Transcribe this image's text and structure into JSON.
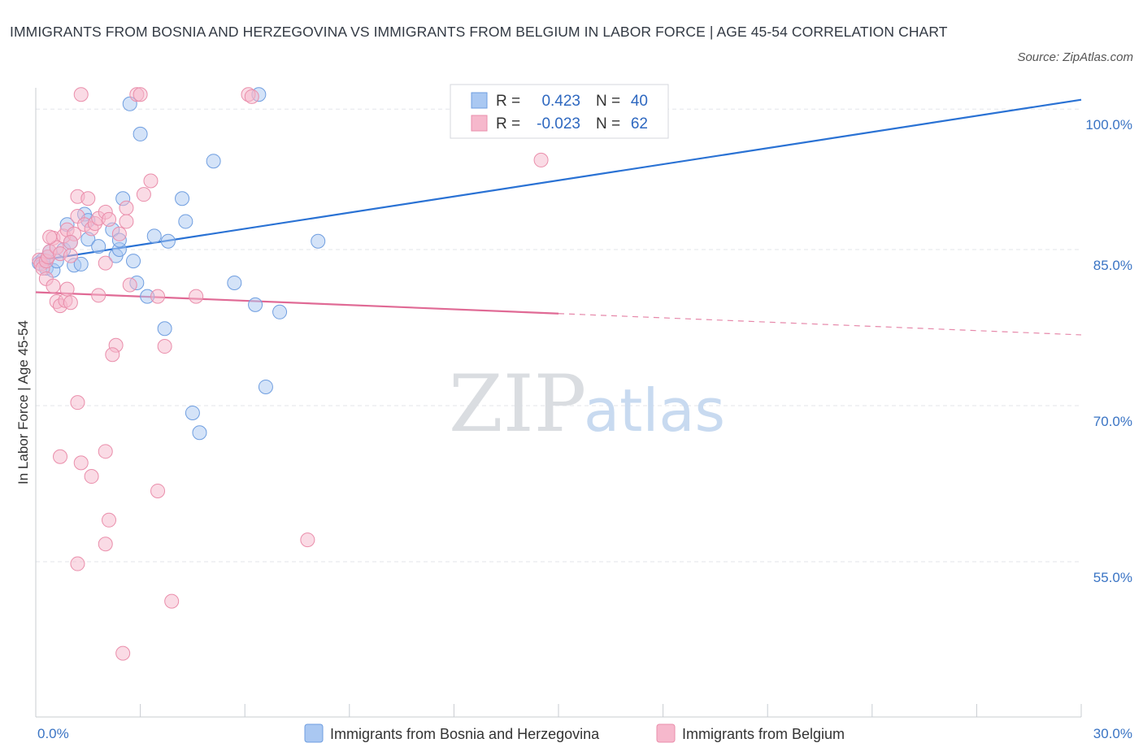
{
  "header": {
    "title": "IMMIGRANTS FROM BOSNIA AND HERZEGOVINA VS IMMIGRANTS FROM BELGIUM IN LABOR FORCE | AGE 45-54 CORRELATION CHART",
    "source": "Source: ZipAtlas.com"
  },
  "watermark": {
    "zip": "ZIP",
    "atlas": "atlas"
  },
  "legend_box": {
    "r_label": "R =",
    "n_label": "N =",
    "series": [
      {
        "r": "0.423",
        "n": "40"
      },
      {
        "r": "-0.023",
        "n": "62"
      }
    ]
  },
  "chart_data": {
    "type": "scatter",
    "title": "IMMIGRANTS FROM BOSNIA AND HERZEGOVINA VS IMMIGRANTS FROM BELGIUM IN LABOR FORCE | AGE 45-54 CORRELATION CHART",
    "xlabel": "",
    "ylabel": "In Labor Force | Age 45-54",
    "xlim": [
      0,
      30
    ],
    "ylim": [
      40,
      100
    ],
    "x_tick_labels": [
      "0.0%",
      "30.0%"
    ],
    "y_ticks": [
      {
        "value": 98.5,
        "label": "100.0%"
      },
      {
        "value": 85,
        "label": "85.0%"
      },
      {
        "value": 70,
        "label": "70.0%"
      },
      {
        "value": 55,
        "label": "55.0%"
      }
    ],
    "colors": {
      "blue_fill": "#aac8f2",
      "blue_stroke": "#6f9ee0",
      "blue_line": "#2a72d4",
      "pink_fill": "#f6b8cc",
      "pink_stroke": "#ea8eab",
      "pink_line": "#e06a95"
    },
    "series": [
      {
        "name": "Immigrants from Bosnia and Herzegovina",
        "color": "#2a72d4",
        "R": 0.423,
        "N": 40,
        "trend": {
          "x0": 0,
          "y0": 83.9,
          "x1": 30,
          "y1": 99.4,
          "solid_until": 30
        },
        "points": [
          [
            0.1,
            83.7
          ],
          [
            0.2,
            84.0
          ],
          [
            0.3,
            83.2
          ],
          [
            0.35,
            84.3
          ],
          [
            0.4,
            84.8
          ],
          [
            0.5,
            83.0
          ],
          [
            0.6,
            83.9
          ],
          [
            0.8,
            85.0
          ],
          [
            1.0,
            85.7
          ],
          [
            1.1,
            83.5
          ],
          [
            1.3,
            83.6
          ],
          [
            1.5,
            86.0
          ],
          [
            0.9,
            87.4
          ],
          [
            1.4,
            88.4
          ],
          [
            1.5,
            87.8
          ],
          [
            2.2,
            86.9
          ],
          [
            2.3,
            84.4
          ],
          [
            2.4,
            85.0
          ],
          [
            1.8,
            85.3
          ],
          [
            2.4,
            85.9
          ],
          [
            2.8,
            83.9
          ],
          [
            2.9,
            81.8
          ],
          [
            3.2,
            80.5
          ],
          [
            3.4,
            86.3
          ],
          [
            3.8,
            85.8
          ],
          [
            4.3,
            87.7
          ],
          [
            4.2,
            89.9
          ],
          [
            2.5,
            89.9
          ],
          [
            2.7,
            99.0
          ],
          [
            3.0,
            96.1
          ],
          [
            5.1,
            93.5
          ],
          [
            5.7,
            81.8
          ],
          [
            6.4,
            99.9
          ],
          [
            6.3,
            79.7
          ],
          [
            7.0,
            79.0
          ],
          [
            6.6,
            71.8
          ],
          [
            3.7,
            77.4
          ],
          [
            4.5,
            69.3
          ],
          [
            4.7,
            67.4
          ],
          [
            8.1,
            85.8
          ]
        ]
      },
      {
        "name": "Immigrants from Belgium",
        "color": "#e06a95",
        "R": -0.023,
        "N": 62,
        "trend": {
          "x0": 0,
          "y0": 80.9,
          "x1": 30,
          "y1": 76.8,
          "solid_until": 15
        },
        "points": [
          [
            0.1,
            84.0
          ],
          [
            0.15,
            83.6
          ],
          [
            0.2,
            83.2
          ],
          [
            0.3,
            83.9
          ],
          [
            0.3,
            82.2
          ],
          [
            0.35,
            84.3
          ],
          [
            0.4,
            84.8
          ],
          [
            0.5,
            86.1
          ],
          [
            0.6,
            85.2
          ],
          [
            0.7,
            84.6
          ],
          [
            0.8,
            86.3
          ],
          [
            0.5,
            81.5
          ],
          [
            0.6,
            80.0
          ],
          [
            0.7,
            79.6
          ],
          [
            0.85,
            80.1
          ],
          [
            0.9,
            81.2
          ],
          [
            1.0,
            79.9
          ],
          [
            0.9,
            86.9
          ],
          [
            1.1,
            86.5
          ],
          [
            1.0,
            85.7
          ],
          [
            1.2,
            88.2
          ],
          [
            1.4,
            87.4
          ],
          [
            1.6,
            87.0
          ],
          [
            1.7,
            87.5
          ],
          [
            1.8,
            88.0
          ],
          [
            1.2,
            90.1
          ],
          [
            1.5,
            89.9
          ],
          [
            2.0,
            88.6
          ],
          [
            2.1,
            87.9
          ],
          [
            2.4,
            86.5
          ],
          [
            2.6,
            89.0
          ],
          [
            2.6,
            87.7
          ],
          [
            3.1,
            90.3
          ],
          [
            3.3,
            91.6
          ],
          [
            1.8,
            80.6
          ],
          [
            2.0,
            83.7
          ],
          [
            2.7,
            81.6
          ],
          [
            3.5,
            80.5
          ],
          [
            3.7,
            75.7
          ],
          [
            4.6,
            80.5
          ],
          [
            2.3,
            75.8
          ],
          [
            2.2,
            74.9
          ],
          [
            1.2,
            70.3
          ],
          [
            0.7,
            65.1
          ],
          [
            1.3,
            64.5
          ],
          [
            1.6,
            63.2
          ],
          [
            2.0,
            65.6
          ],
          [
            3.5,
            61.8
          ],
          [
            2.1,
            59.0
          ],
          [
            2.0,
            56.7
          ],
          [
            1.2,
            54.8
          ],
          [
            3.9,
            51.2
          ],
          [
            2.5,
            46.2
          ],
          [
            7.8,
            57.1
          ],
          [
            1.3,
            99.9
          ],
          [
            2.9,
            99.9
          ],
          [
            3.0,
            99.9
          ],
          [
            6.1,
            99.9
          ],
          [
            14.5,
            93.6
          ],
          [
            6.2,
            99.7
          ],
          [
            0.4,
            86.2
          ],
          [
            1.0,
            84.4
          ]
        ]
      }
    ]
  },
  "legend": {
    "items": [
      "Immigrants from Bosnia and Herzegovina",
      "Immigrants from Belgium"
    ]
  }
}
